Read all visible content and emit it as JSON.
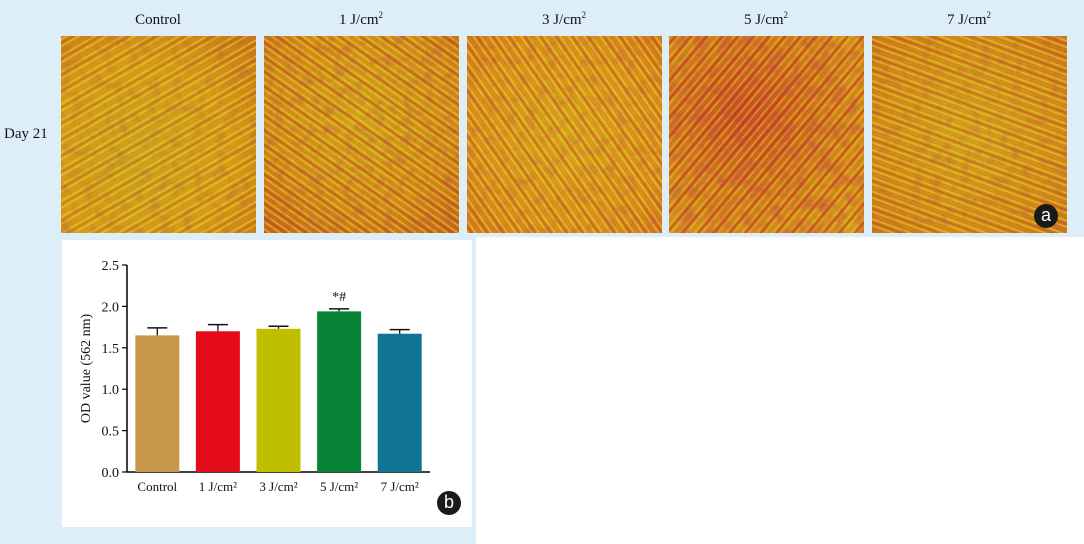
{
  "figure": {
    "panel_a": {
      "row_label": "Day 21",
      "columns": [
        {
          "name": "Control",
          "unit": ""
        },
        {
          "name": "1 J/cm",
          "unit": "2"
        },
        {
          "name": "3 J/cm",
          "unit": "2"
        },
        {
          "name": "5 J/cm",
          "unit": "2"
        },
        {
          "name": "7 J/cm",
          "unit": "2"
        }
      ],
      "badge": "a"
    },
    "panel_b": {
      "badge": "b"
    }
  },
  "chart_data": {
    "type": "bar",
    "categories": [
      "Control",
      "1 J/cm²",
      "3 J/cm²",
      "5 J/cm²",
      "7 J/cm²"
    ],
    "values": [
      1.65,
      1.7,
      1.73,
      1.94,
      1.67
    ],
    "errors": [
      0.09,
      0.08,
      0.03,
      0.03,
      0.05
    ],
    "annotations": [
      "",
      "",
      "",
      "*#",
      ""
    ],
    "colors": [
      "#c8984a",
      "#e40c1a",
      "#bfbf00",
      "#088436",
      "#0f7592"
    ],
    "xlabel": "",
    "ylabel": "OD value (562 nm)",
    "ylim": [
      0,
      2.5
    ],
    "yticks": [
      "0.0",
      "0.5",
      "1.0",
      "1.5",
      "2.0",
      "2.5"
    ],
    "grid": false,
    "legend": "none"
  }
}
